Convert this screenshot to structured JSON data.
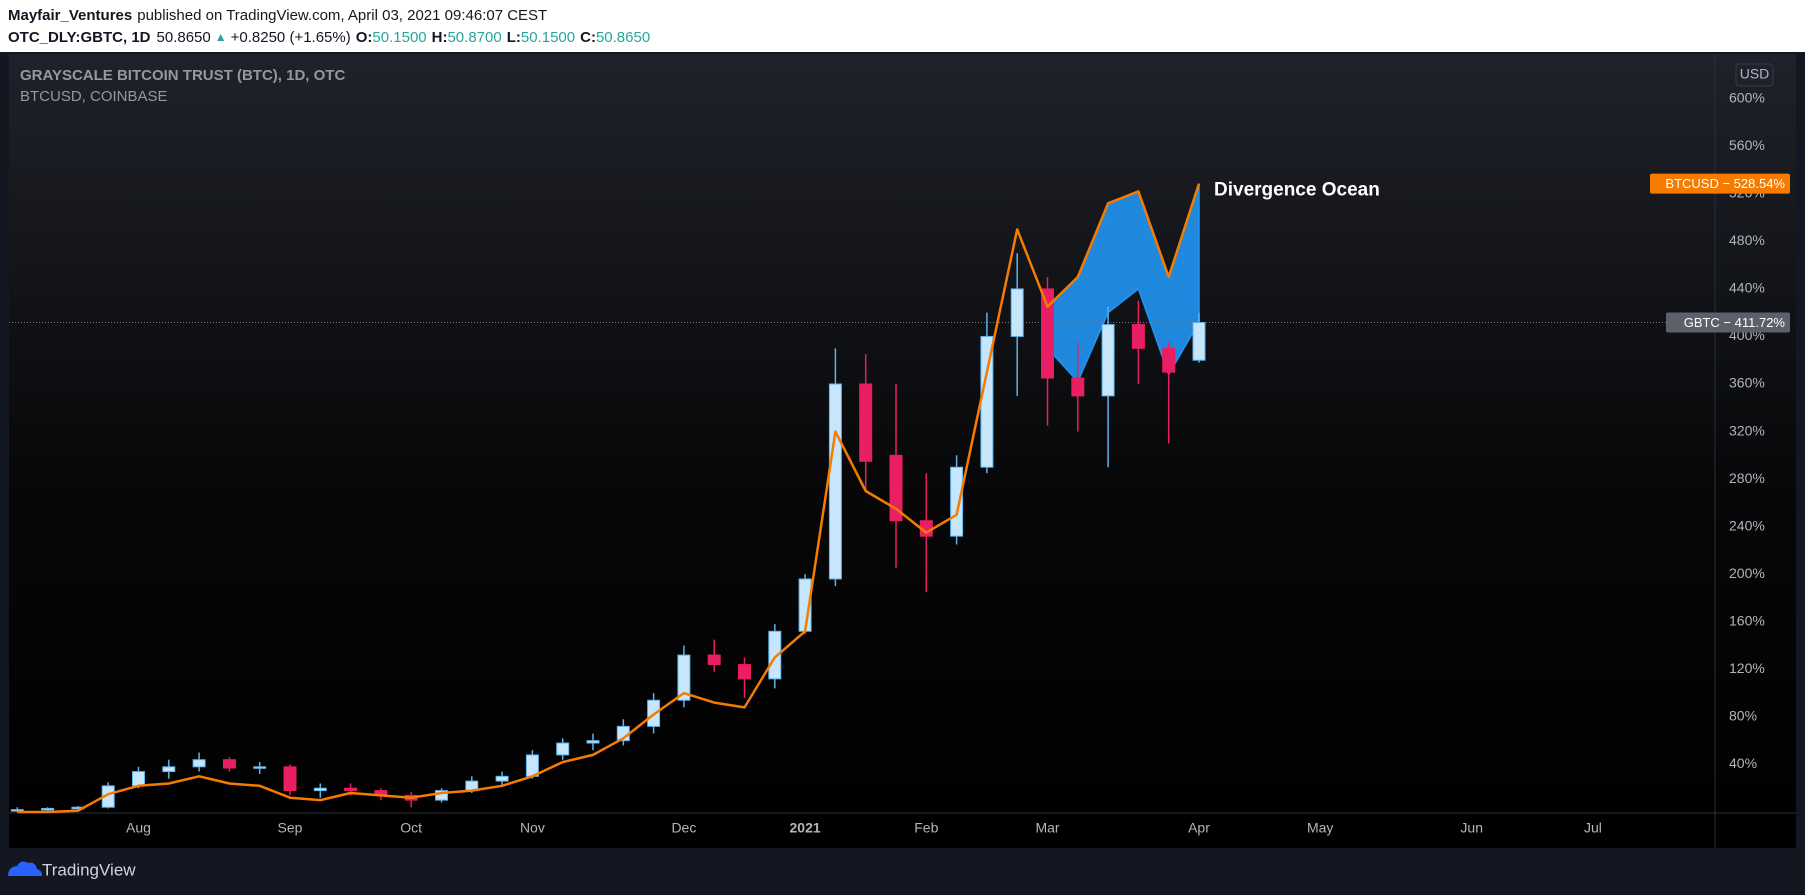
{
  "header": {
    "author": "Mayfair_Ventures",
    "published": "published on TradingView.com, April 03, 2021 09:46:07 CEST",
    "symbol": "OTC_DLY:GBTC, 1D",
    "price": "50.8650",
    "arrow": "▲",
    "change": "+0.8250 (+1.65%)",
    "ohlc": [
      {
        "label": "O:",
        "value": "50.1500"
      },
      {
        "label": "H:",
        "value": "50.8700"
      },
      {
        "label": "L:",
        "value": "50.1500"
      },
      {
        "label": "C:",
        "value": "50.8650"
      }
    ]
  },
  "chart_data": {
    "type": "candlestick",
    "legend": [
      "GRAYSCALE BITCOIN TRUST (BTC), 1D, OTC",
      "BTCUSD, COINBASE"
    ],
    "currency": "USD",
    "categories": [
      null,
      null,
      null,
      null,
      "Aug",
      null,
      null,
      null,
      null,
      "Sep",
      null,
      null,
      null,
      "Oct",
      null,
      null,
      null,
      null,
      null,
      null,
      null,
      null,
      "Dec",
      null,
      null,
      null,
      "2021",
      null,
      null,
      null,
      "Feb",
      null,
      null,
      null,
      "Mar",
      null,
      null,
      null,
      null,
      "Apr",
      null,
      null,
      null,
      "May",
      null,
      null,
      null,
      null,
      "Jun",
      null,
      null,
      null,
      "Jul",
      null,
      null,
      null,
      null
    ],
    "month_labels_extra": {
      "index": 17,
      "label": "Nov"
    },
    "series": [
      {
        "name": "GBTC",
        "up_color": "#c6e6fb",
        "up_border": "#5fb2ea",
        "down_color": "#e91e63",
        "tag_label": "GBTC − 411.72%",
        "tag_color": "#5d606b",
        "open": [
          1,
          2,
          3,
          4,
          22,
          34,
          38,
          44,
          37,
          38,
          18,
          20,
          18,
          14,
          10,
          18,
          26,
          30,
          48,
          58,
          60,
          72,
          94,
          132,
          124,
          112,
          152,
          196,
          360,
          300,
          245,
          232,
          290,
          400,
          440,
          365,
          350,
          410,
          390,
          380,
          null,
          null,
          null,
          null,
          null,
          null,
          null,
          null,
          null,
          null,
          null,
          null,
          null,
          null,
          null,
          null,
          null
        ],
        "high": [
          4,
          4,
          5,
          25,
          38,
          44,
          50,
          46,
          42,
          40,
          24,
          24,
          20,
          17,
          20,
          30,
          34,
          52,
          62,
          66,
          78,
          100,
          140,
          145,
          130,
          158,
          200,
          390,
          385,
          360,
          285,
          300,
          420,
          470,
          450,
          395,
          425,
          430,
          395,
          420,
          null,
          null,
          null,
          null,
          null,
          null,
          null,
          null,
          null,
          null,
          null,
          null,
          null,
          null,
          null,
          null,
          null
        ],
        "low": [
          0,
          0,
          1,
          3,
          20,
          28,
          34,
          34,
          32,
          14,
          12,
          14,
          10,
          4,
          8,
          16,
          22,
          28,
          44,
          52,
          56,
          66,
          88,
          118,
          96,
          104,
          150,
          190,
          270,
          205,
          185,
          225,
          285,
          350,
          325,
          320,
          290,
          360,
          310,
          378,
          null,
          null,
          null,
          null,
          null,
          null,
          null,
          null,
          null,
          null,
          null,
          null,
          null,
          null,
          null,
          null,
          null
        ],
        "close": [
          2,
          3,
          4,
          22,
          34,
          38,
          44,
          37,
          38,
          18,
          20,
          18,
          14,
          10,
          18,
          26,
          30,
          48,
          58,
          60,
          72,
          94,
          132,
          124,
          112,
          152,
          196,
          360,
          295,
          245,
          232,
          290,
          400,
          440,
          365,
          350,
          410,
          390,
          370,
          411.72,
          null,
          null,
          null,
          null,
          null,
          null,
          null,
          null,
          null,
          null,
          null,
          null,
          null,
          null,
          null,
          null,
          null
        ]
      },
      {
        "name": "BTCUSD",
        "color": "#f57c00",
        "tag_label": "BTCUSD − 528.54%",
        "values": [
          0,
          0,
          1,
          15,
          22,
          24,
          30,
          24,
          22,
          12,
          10,
          16,
          14,
          12,
          16,
          18,
          22,
          30,
          42,
          48,
          62,
          82,
          100,
          92,
          88,
          130,
          152,
          320,
          270,
          255,
          235,
          250,
          370,
          490,
          425,
          450,
          512,
          522,
          450,
          528.54,
          null,
          null,
          null,
          null,
          null,
          null,
          null,
          null,
          null,
          null,
          null,
          null,
          null,
          null,
          null,
          null,
          null
        ]
      }
    ],
    "annotation": {
      "text": "Divergence Ocean",
      "color": "#2196f3",
      "lower": [
        null,
        null,
        null,
        null,
        null,
        null,
        null,
        null,
        null,
        null,
        null,
        null,
        null,
        null,
        null,
        null,
        null,
        null,
        null,
        null,
        null,
        null,
        null,
        null,
        null,
        null,
        null,
        null,
        null,
        null,
        null,
        null,
        null,
        null,
        390,
        362,
        420,
        440,
        368,
        412,
        null,
        null,
        null,
        null,
        null,
        null,
        null,
        null,
        null,
        null,
        null,
        null,
        null,
        null,
        null,
        null,
        null
      ]
    },
    "ylim": [
      0,
      630
    ],
    "yticks": [
      {
        "value": 40,
        "label": "40%"
      },
      {
        "value": 80,
        "label": "80%"
      },
      {
        "value": 120,
        "label": "120%"
      },
      {
        "value": 160,
        "label": "160%"
      },
      {
        "value": 200,
        "label": "200%"
      },
      {
        "value": 240,
        "label": "240%"
      },
      {
        "value": 280,
        "label": "280%"
      },
      {
        "value": 320,
        "label": "320%"
      },
      {
        "value": 360,
        "label": "360%"
      },
      {
        "value": 400,
        "label": "400%"
      },
      {
        "value": 440,
        "label": "440%"
      },
      {
        "value": 480,
        "label": "480%"
      },
      {
        "value": 520,
        "label": "520%"
      },
      {
        "value": 560,
        "label": "560%"
      },
      {
        "value": 600,
        "label": "600%"
      }
    ],
    "grid": false
  },
  "footer": {
    "brand": "TradingView"
  }
}
